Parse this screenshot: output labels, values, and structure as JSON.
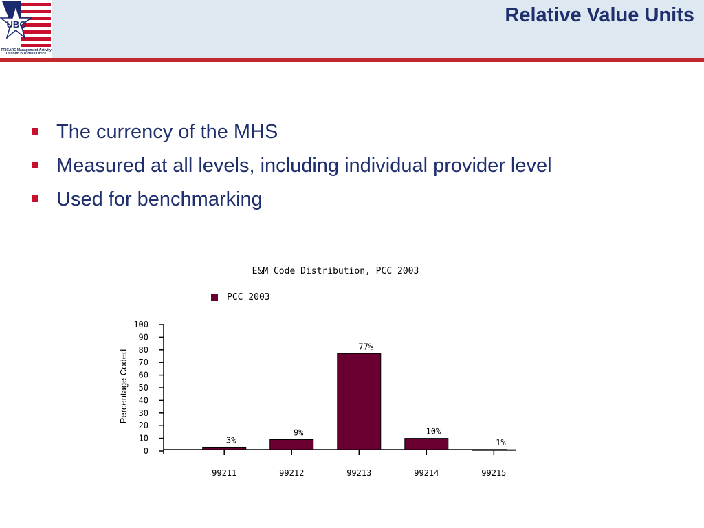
{
  "header": {
    "title": "Relative Value Units",
    "logo_text": "UBO",
    "logo_subtitle_1": "TRICARE Management Activity",
    "logo_subtitle_2": "Uniform Business Office"
  },
  "bullets": [
    "The currency of the MHS",
    "Measured at all levels, including individual provider level",
    "Used for benchmarking"
  ],
  "colors": {
    "title": "#1f2f6e",
    "bullet": "#c8102e",
    "header_bg": "#dde8f0",
    "header_rule": "#c0282d",
    "bar": "#6a0032"
  },
  "chart_data": {
    "type": "bar",
    "title": "E&M Code Distribution, PCC 2003",
    "legend": "PCC 2003",
    "ylabel": "Percentage Coded",
    "categories": [
      "99211",
      "99212",
      "99213",
      "99214",
      "99215"
    ],
    "values": [
      3,
      9,
      77,
      10,
      1
    ],
    "data_labels": [
      "3%",
      "9%",
      "77%",
      "10%",
      "1%"
    ],
    "ylim": [
      0,
      100
    ],
    "yticks": [
      "0",
      "10",
      "20",
      "30",
      "40",
      "50",
      "60",
      "70",
      "80",
      "90",
      "100"
    ]
  }
}
